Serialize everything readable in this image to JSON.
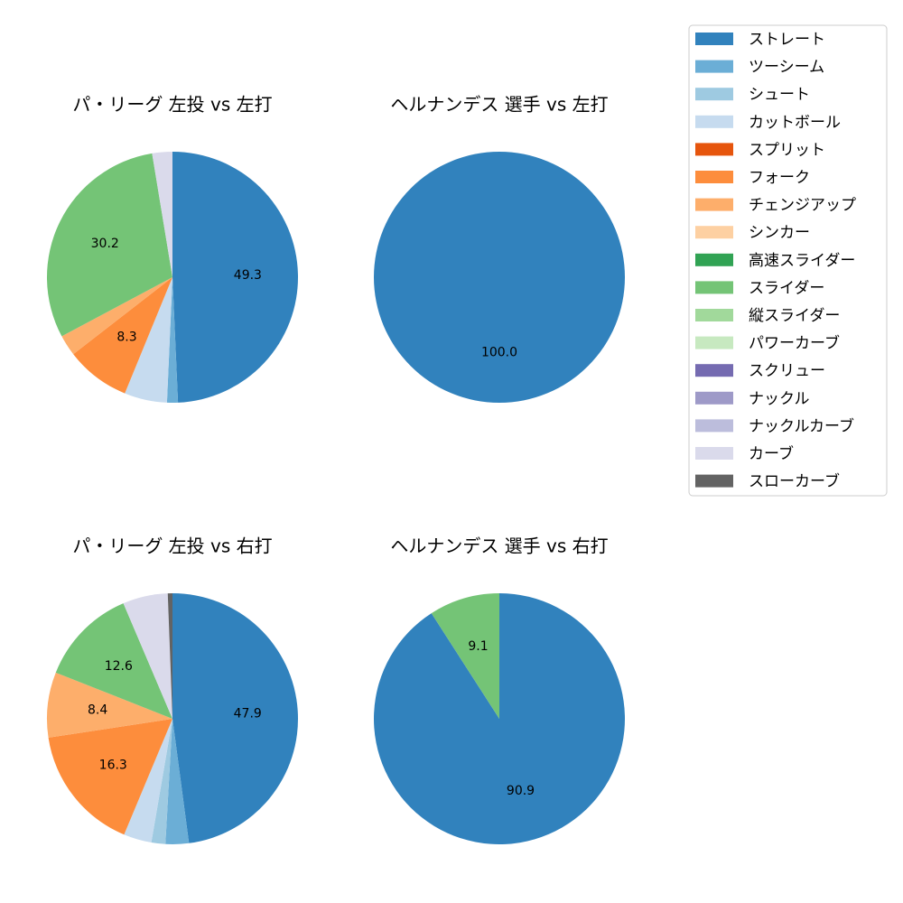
{
  "chart_data": [
    {
      "type": "pie",
      "title": "パ・リーグ 左投 vs 左打",
      "categories": [
        "ストレート",
        "ツーシーム",
        "カットボール",
        "フォーク",
        "チェンジアップ",
        "スライダー",
        "カーブ"
      ],
      "values": [
        49.3,
        1.4,
        5.5,
        8.3,
        2.7,
        30.2,
        2.6
      ],
      "labels": [
        "49.3",
        "",
        "",
        "8.3",
        "",
        "30.2",
        ""
      ]
    },
    {
      "type": "pie",
      "title": "ヘルナンデス 選手 vs 左打",
      "categories": [
        "ストレート"
      ],
      "values": [
        100.0
      ],
      "labels": [
        "100.0"
      ]
    },
    {
      "type": "pie",
      "title": "パ・リーグ 左投 vs 右打",
      "categories": [
        "ストレート",
        "ツーシーム",
        "シュート",
        "カットボール",
        "フォーク",
        "チェンジアップ",
        "スライダー",
        "カーブ",
        "スローカーブ"
      ],
      "values": [
        47.9,
        3.0,
        1.8,
        3.6,
        16.3,
        8.4,
        12.6,
        5.8,
        0.6
      ],
      "labels": [
        "47.9",
        "",
        "",
        "",
        "16.3",
        "8.4",
        "12.6",
        "",
        ""
      ]
    },
    {
      "type": "pie",
      "title": "ヘルナンデス 選手 vs 右打",
      "categories": [
        "ストレート",
        "スライダー"
      ],
      "values": [
        90.9,
        9.1
      ],
      "labels": [
        "90.9",
        "9.1"
      ]
    }
  ],
  "legend": {
    "position": "top-right",
    "items": [
      {
        "label": "ストレート",
        "color": "#3182bd"
      },
      {
        "label": "ツーシーム",
        "color": "#6baed6"
      },
      {
        "label": "シュート",
        "color": "#9ecae1"
      },
      {
        "label": "カットボール",
        "color": "#c6dbef"
      },
      {
        "label": "スプリット",
        "color": "#e6550d"
      },
      {
        "label": "フォーク",
        "color": "#fd8d3c"
      },
      {
        "label": "チェンジアップ",
        "color": "#fdae6b"
      },
      {
        "label": "シンカー",
        "color": "#fdd0a2"
      },
      {
        "label": "高速スライダー",
        "color": "#31a354"
      },
      {
        "label": "スライダー",
        "color": "#74c476"
      },
      {
        "label": "縦スライダー",
        "color": "#a1d99b"
      },
      {
        "label": "パワーカーブ",
        "color": "#c7e9c0"
      },
      {
        "label": "スクリュー",
        "color": "#756bb1"
      },
      {
        "label": "ナックル",
        "color": "#9e9ac8"
      },
      {
        "label": "ナックルカーブ",
        "color": "#bcbddc"
      },
      {
        "label": "カーブ",
        "color": "#dadaeb"
      },
      {
        "label": "スローカーブ",
        "color": "#636363"
      }
    ]
  }
}
